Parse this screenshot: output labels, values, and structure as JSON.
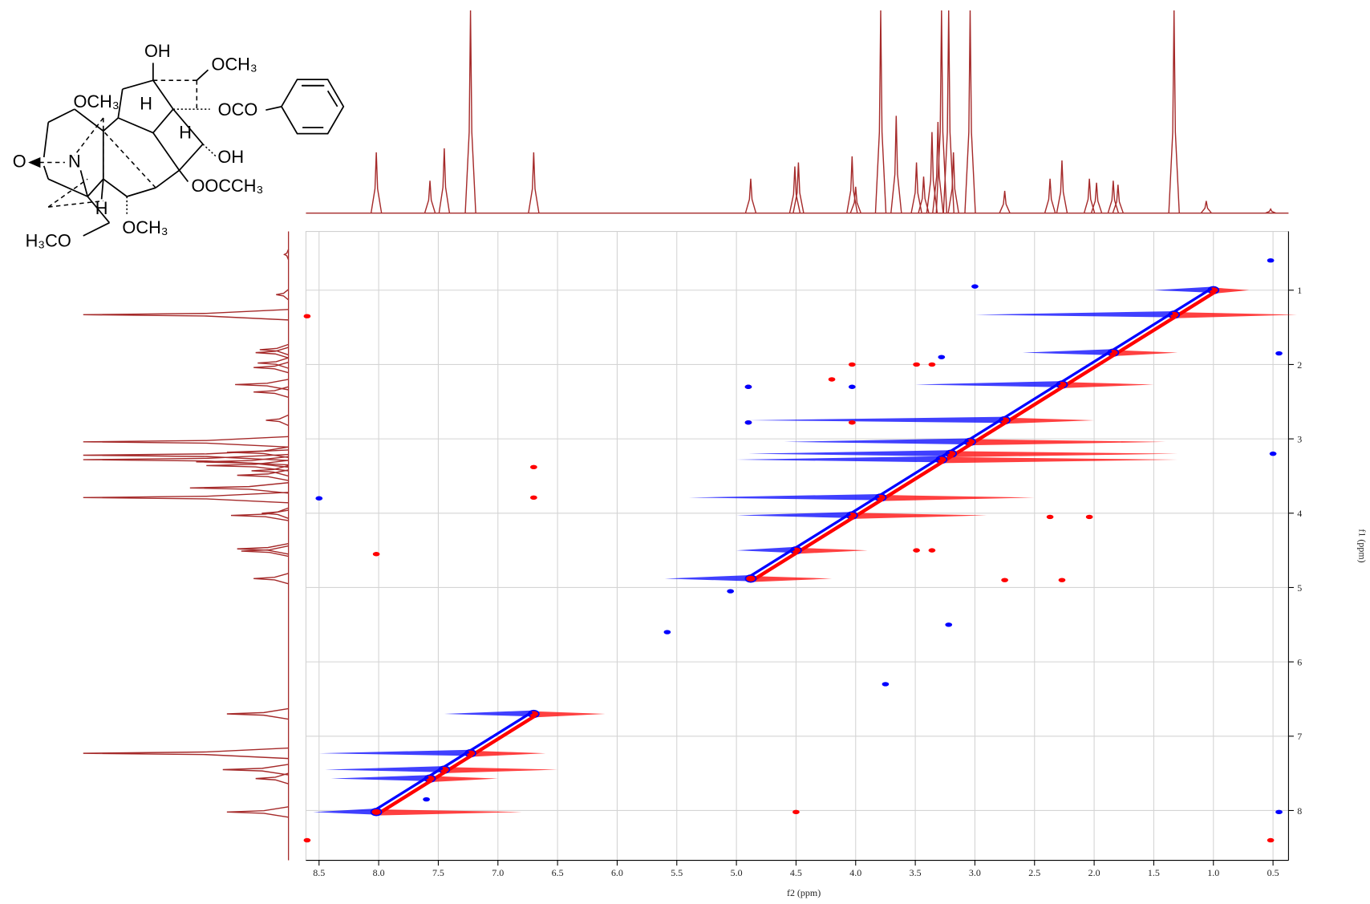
{
  "structure": {
    "labels": [
      "OH",
      "OCH₃",
      "OCH₃",
      "H",
      "OCO",
      "H",
      "OH",
      "O",
      "N",
      "OOCCH₃",
      "H",
      "OCH₃",
      "H₃CO"
    ]
  },
  "chart_data": {
    "type": "contour",
    "x_label": "f2 (ppm)",
    "y_label": "f1 (ppm)",
    "xlim": [
      8.61,
      0.37
    ],
    "ylim": [
      0.21,
      8.67
    ],
    "xticks": [
      8.5,
      {
        "value": 8,
        "label": "8.0"
      },
      7.5,
      {
        "value": 7,
        "label": "7.0"
      },
      6.5,
      {
        "value": 6,
        "label": "6.0"
      },
      5.5,
      {
        "value": 5,
        "label": "5.0"
      },
      4.5,
      {
        "value": 4,
        "label": "4.0"
      },
      3.5,
      {
        "value": 3,
        "label": "3.0"
      },
      2.5,
      {
        "value": 2,
        "label": "2.0"
      },
      1.5,
      {
        "value": 1,
        "label": "1.0"
      },
      0.5
    ],
    "yticks": [
      1,
      2,
      3,
      4,
      5,
      6,
      7,
      8
    ],
    "grid": true,
    "projection": {
      "color": "#a52a2a",
      "x": [
        8.02,
        7.57,
        7.45,
        7.23,
        6.7,
        4.88,
        4.51,
        4.48,
        4.03,
        4.0,
        3.79,
        3.66,
        3.49,
        3.43,
        3.36,
        3.31,
        3.28,
        3.22,
        3.18,
        3.04,
        2.75,
        2.37,
        2.27,
        2.04,
        1.98,
        1.84,
        1.8,
        1.33,
        1.06,
        0.52
      ],
      "values": [
        30,
        16,
        32,
        100,
        30,
        17,
        23,
        25,
        28,
        13,
        100,
        48,
        25,
        18,
        40,
        45,
        100,
        100,
        30,
        100,
        11,
        17,
        26,
        17,
        15,
        16,
        14,
        100,
        6,
        2
      ]
    },
    "diagonal": {
      "positive_color": "#ff0000",
      "negative_color": "#0000ff",
      "ppm": [
        1.0,
        1.33,
        1.84,
        2.27,
        2.75,
        3.04,
        3.2,
        3.28,
        3.79,
        4.03,
        4.5,
        4.88,
        6.7,
        7.23,
        7.45,
        7.57,
        8.02
      ],
      "negative_extent": [
        1.5,
        3.0,
        2.6,
        3.5,
        4.9,
        4.6,
        4.9,
        5.0,
        5.4,
        5.0,
        5.0,
        5.6,
        7.45,
        8.5,
        8.45,
        8.4,
        8.55
      ],
      "positive_extent": [
        0.7,
        0.3,
        1.3,
        1.5,
        2.0,
        1.4,
        1.3,
        1.3,
        2.5,
        2.9,
        3.9,
        4.2,
        6.1,
        6.6,
        6.5,
        7.0,
        6.8
      ]
    },
    "series": [
      {
        "color": "#ff0000",
        "x": [
          8.6,
          8.6,
          4.9,
          4.9,
          4.03,
          4.03,
          3.49,
          3.36,
          6.7,
          6.7,
          8.02,
          2.75,
          2.27,
          2.04,
          2.37,
          3.49,
          3.36,
          4.5,
          0.52,
          4.2
        ],
        "y": [
          1.35,
          8.4,
          2.3,
          2.78,
          2.0,
          2.78,
          2.0,
          2.0,
          3.38,
          3.79,
          4.55,
          4.9,
          4.9,
          4.05,
          4.05,
          4.5,
          4.5,
          8.02,
          8.4,
          2.2
        ]
      },
      {
        "color": "#0000ff",
        "x": [
          8.5,
          0.52,
          3.0,
          4.9,
          4.9,
          4.03,
          3.28,
          3.22,
          3.75,
          5.58,
          0.45,
          0.45,
          0.5,
          7.6,
          5.05
        ],
        "y": [
          3.8,
          0.6,
          0.95,
          2.3,
          2.78,
          2.3,
          1.9,
          5.5,
          6.3,
          5.6,
          8.02,
          1.85,
          3.2,
          7.85,
          5.05
        ]
      }
    ]
  }
}
